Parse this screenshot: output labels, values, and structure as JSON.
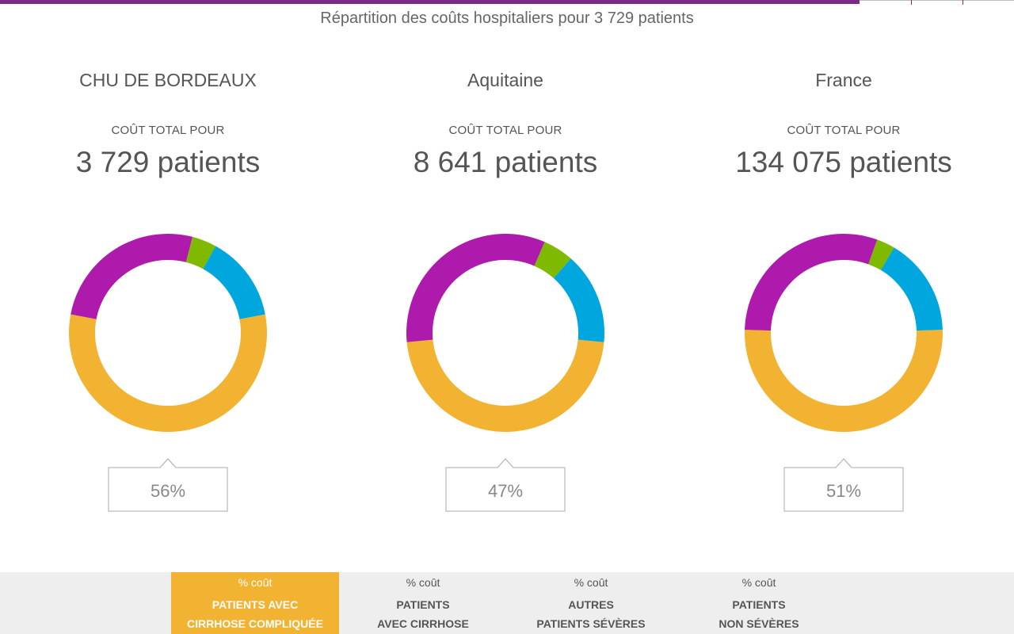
{
  "subtitle": "Répartition des coûts hospitaliers pour 3 729 patients",
  "colors": {
    "cirrhose_compliquee": "#f2b333",
    "avec_cirrhose": "#00a6de",
    "autres_severes": "#7fba00",
    "non_severes": "#ad1aac",
    "accent_bar": "#7b2a86"
  },
  "chart_data": [
    {
      "type": "pie",
      "title": "CHU DE BORDEAUX",
      "caption": "COÛT TOTAL POUR",
      "value_label": "3 729 patients",
      "callout": "56%",
      "slices": [
        {
          "category": "PATIENTS AVEC CIRRHOSE COMPLIQUÉE",
          "value": 56
        },
        {
          "category": "PATIENTS AVEC CIRRHOSE",
          "value": 14
        },
        {
          "category": "AUTRES PATIENTS SÉVÈRES",
          "value": 4
        },
        {
          "category": "PATIENTS NON SÉVÈRES",
          "value": 26
        }
      ]
    },
    {
      "type": "pie",
      "title": "Aquitaine",
      "caption": "COÛT TOTAL POUR",
      "value_label": "8 641 patients",
      "callout": "47%",
      "slices": [
        {
          "category": "PATIENTS AVEC CIRRHOSE COMPLIQUÉE",
          "value": 47
        },
        {
          "category": "PATIENTS AVEC CIRRHOSE",
          "value": 15
        },
        {
          "category": "AUTRES PATIENTS SÉVÈRES",
          "value": 5
        },
        {
          "category": "PATIENTS NON SÉVÈRES",
          "value": 33
        }
      ]
    },
    {
      "type": "pie",
      "title": "France",
      "caption": "COÛT TOTAL POUR",
      "value_label": "134 075 patients",
      "callout": "51%",
      "slices": [
        {
          "category": "PATIENTS AVEC CIRRHOSE COMPLIQUÉE",
          "value": 51
        },
        {
          "category": "PATIENTS AVEC CIRRHOSE",
          "value": 16
        },
        {
          "category": "AUTRES PATIENTS SÉVÈRES",
          "value": 3
        },
        {
          "category": "PATIENTS NON SÉVÈRES",
          "value": 30
        }
      ]
    }
  ],
  "legend": [
    {
      "pct_label": "% coût",
      "line1": "PATIENTS AVEC",
      "line2": "CIRRHOSE COMPLIQUÉE",
      "color": "#f2b333",
      "active": true
    },
    {
      "pct_label": "% coût",
      "line1": "PATIENTS",
      "line2": "AVEC CIRRHOSE",
      "color": "#00a6de",
      "active": false
    },
    {
      "pct_label": "% coût",
      "line1": "AUTRES",
      "line2": "PATIENTS SÉVÈRES",
      "color": "#7fba00",
      "active": false
    },
    {
      "pct_label": "% coût",
      "line1": "PATIENTS",
      "line2": "NON SÉVÈRES",
      "color": "#ad1aac",
      "active": false
    }
  ]
}
